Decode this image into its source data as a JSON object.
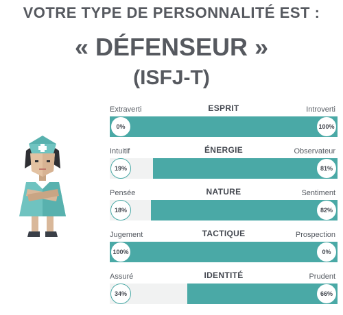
{
  "header": {
    "line1": "VOTRE TYPE DE PERSONNALITÉ EST :",
    "type": "« DÉFENSEUR »",
    "code": "(ISFJ-T)"
  },
  "colors": {
    "accent": "#4aa9a6",
    "track": "#f1f2f2"
  },
  "traits": [
    {
      "category": "ESPRIT",
      "left_label": "Extraverti",
      "right_label": "Introverti",
      "left_value": "0%",
      "right_value": "100%",
      "dominant": "right",
      "percent": 100
    },
    {
      "category": "ÉNERGIE",
      "left_label": "Intuitif",
      "right_label": "Observateur",
      "left_value": "19%",
      "right_value": "81%",
      "dominant": "right",
      "percent": 81
    },
    {
      "category": "NATURE",
      "left_label": "Pensée",
      "right_label": "Sentiment",
      "left_value": "18%",
      "right_value": "82%",
      "dominant": "right",
      "percent": 82
    },
    {
      "category": "TACTIQUE",
      "left_label": "Jugement",
      "right_label": "Prospection",
      "left_value": "100%",
      "right_value": "0%",
      "dominant": "left",
      "percent": 100
    },
    {
      "category": "IDENTITÉ",
      "left_label": "Assuré",
      "right_label": "Prudent",
      "left_value": "34%",
      "right_value": "66%",
      "dominant": "right",
      "percent": 66
    }
  ]
}
